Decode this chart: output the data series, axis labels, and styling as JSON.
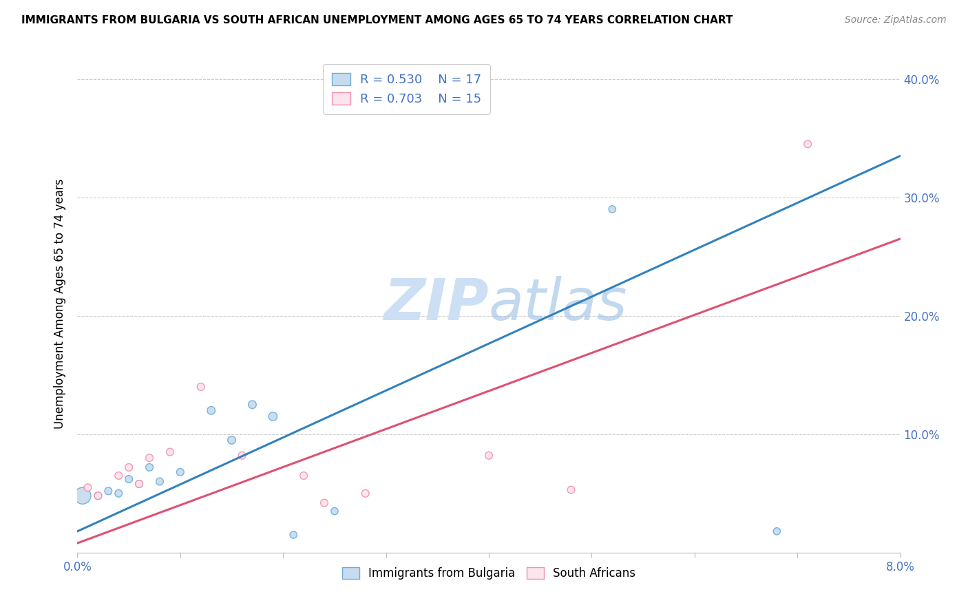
{
  "title": "IMMIGRANTS FROM BULGARIA VS SOUTH AFRICAN UNEMPLOYMENT AMONG AGES 65 TO 74 YEARS CORRELATION CHART",
  "source": "Source: ZipAtlas.com",
  "ylabel": "Unemployment Among Ages 65 to 74 years",
  "xlim": [
    0.0,
    0.08
  ],
  "ylim": [
    0.0,
    0.42
  ],
  "xticks": [
    0.0,
    0.01,
    0.02,
    0.03,
    0.04,
    0.05,
    0.06,
    0.07,
    0.08
  ],
  "xtick_labels": [
    "0.0%",
    "",
    "",
    "",
    "",
    "",
    "",
    "",
    "8.0%"
  ],
  "yticks": [
    0.0,
    0.1,
    0.2,
    0.3,
    0.4
  ],
  "ytick_labels": [
    "",
    "10.0%",
    "20.0%",
    "30.0%",
    "40.0%"
  ],
  "blue_scatter_x": [
    0.0005,
    0.002,
    0.003,
    0.004,
    0.005,
    0.006,
    0.007,
    0.008,
    0.01,
    0.013,
    0.015,
    0.017,
    0.019,
    0.021,
    0.025,
    0.052,
    0.068
  ],
  "blue_scatter_y": [
    0.048,
    0.048,
    0.052,
    0.05,
    0.062,
    0.058,
    0.072,
    0.06,
    0.068,
    0.12,
    0.095,
    0.125,
    0.115,
    0.015,
    0.035,
    0.29,
    0.018
  ],
  "blue_scatter_sizes": [
    300,
    60,
    60,
    60,
    60,
    60,
    60,
    60,
    60,
    70,
    70,
    70,
    80,
    55,
    55,
    55,
    55
  ],
  "pink_scatter_x": [
    0.001,
    0.002,
    0.004,
    0.005,
    0.006,
    0.007,
    0.009,
    0.012,
    0.016,
    0.022,
    0.024,
    0.028,
    0.04,
    0.048,
    0.071
  ],
  "pink_scatter_y": [
    0.055,
    0.048,
    0.065,
    0.072,
    0.058,
    0.08,
    0.085,
    0.14,
    0.082,
    0.065,
    0.042,
    0.05,
    0.082,
    0.053,
    0.345
  ],
  "pink_scatter_sizes": [
    60,
    60,
    60,
    60,
    60,
    60,
    60,
    60,
    60,
    60,
    60,
    60,
    60,
    60,
    60
  ],
  "blue_line_x": [
    0.0,
    0.08
  ],
  "blue_line_y": [
    0.018,
    0.335
  ],
  "pink_line_x": [
    0.0,
    0.08
  ],
  "pink_line_y": [
    0.008,
    0.265
  ],
  "blue_R": "0.530",
  "blue_N": "17",
  "pink_R": "0.703",
  "pink_N": "15",
  "blue_color": "#6baed6",
  "blue_fill": "#c6dbef",
  "pink_color": "#f48fb1",
  "pink_fill": "#fce4ec",
  "blue_line_color": "#3182bd",
  "pink_line_color": "#e05070",
  "watermark_color": "#cddff5",
  "tick_color": "#4472c4"
}
